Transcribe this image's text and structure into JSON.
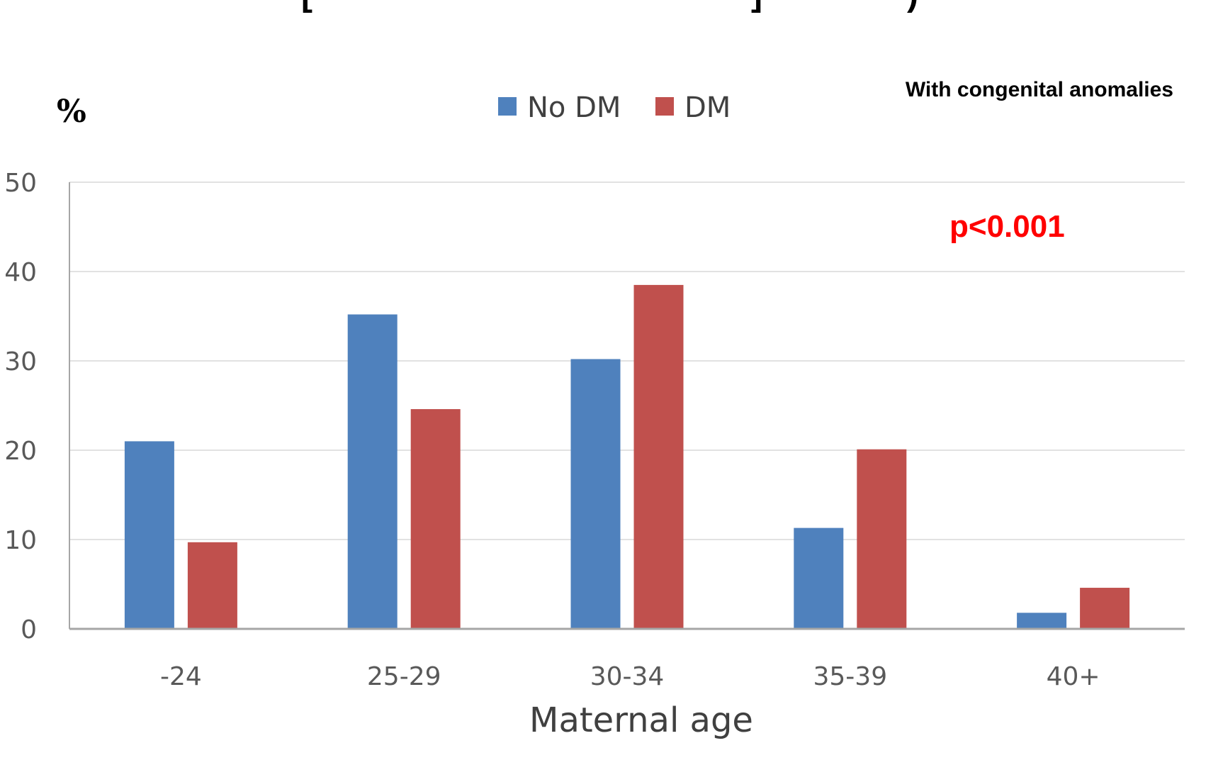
{
  "chart_data": {
    "type": "bar",
    "title": "",
    "subtitle": "With congenital anomalies",
    "unit_label": "%",
    "xlabel": "Maternal age",
    "ylabel": "",
    "ylim": [
      0,
      50
    ],
    "yticks": [
      0,
      10,
      20,
      30,
      40,
      50
    ],
    "categories": [
      "-24",
      "25-29",
      "30-34",
      "35-39",
      "40+"
    ],
    "series": [
      {
        "name": "No DM",
        "color": "#4f81bd",
        "values": [
          21.0,
          35.2,
          30.2,
          11.3,
          1.8
        ]
      },
      {
        "name": "DM",
        "color": "#c0504d",
        "values": [
          9.7,
          24.6,
          38.5,
          20.1,
          4.6
        ]
      }
    ],
    "annotation": {
      "text": "p<0.001",
      "color": "#ff0000"
    },
    "grid": true,
    "legend_position": "top-center"
  }
}
